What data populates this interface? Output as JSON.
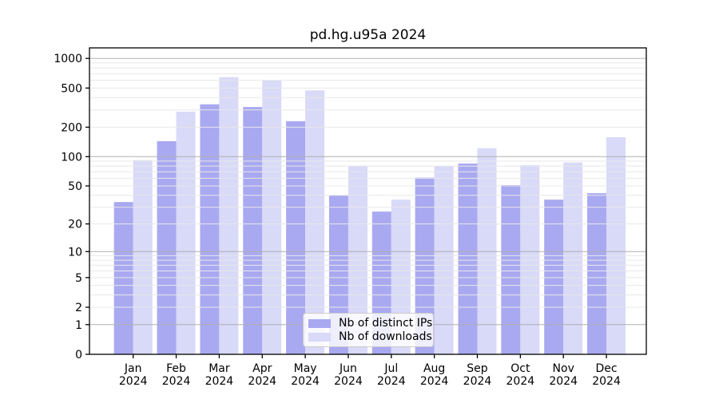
{
  "chart_data": {
    "type": "bar",
    "title": "pd.hg.u95a 2024",
    "categories": [
      "Jan",
      "Feb",
      "Mar",
      "Apr",
      "May",
      "Jun",
      "Jul",
      "Aug",
      "Sep",
      "Oct",
      "Nov",
      "Dec"
    ],
    "category_year": "2024",
    "series": [
      {
        "name": "Nb of distinct IPs",
        "color": "#a9a9f1",
        "values": [
          34,
          144,
          342,
          321,
          230,
          40,
          27,
          61,
          85,
          51,
          36,
          42
        ]
      },
      {
        "name": "Nb of downloads",
        "color": "#d9d9f8",
        "values": [
          92,
          288,
          645,
          600,
          473,
          81,
          36,
          80,
          122,
          82,
          87,
          158
        ]
      }
    ],
    "yscale": "log1p",
    "yticks": [
      0,
      1,
      2,
      5,
      10,
      20,
      50,
      100,
      200,
      500,
      1000
    ],
    "ylim": [
      0,
      1280
    ],
    "xlabel": "",
    "ylabel": "",
    "grid": {
      "major_values": [
        1,
        10,
        100,
        1000
      ],
      "minor": "2-9 per decade",
      "drawn_above_bars": true
    },
    "legend_position": "bottom-center"
  },
  "colors": {
    "background": "#ffffff",
    "bar_distinct_ips": "#a9a9f1",
    "bar_downloads": "#d9d9f8",
    "grid_major": "#b0b0b0",
    "grid_minor": "#e8e8e8",
    "axis": "#000000",
    "legend_border": "#cccccc"
  }
}
